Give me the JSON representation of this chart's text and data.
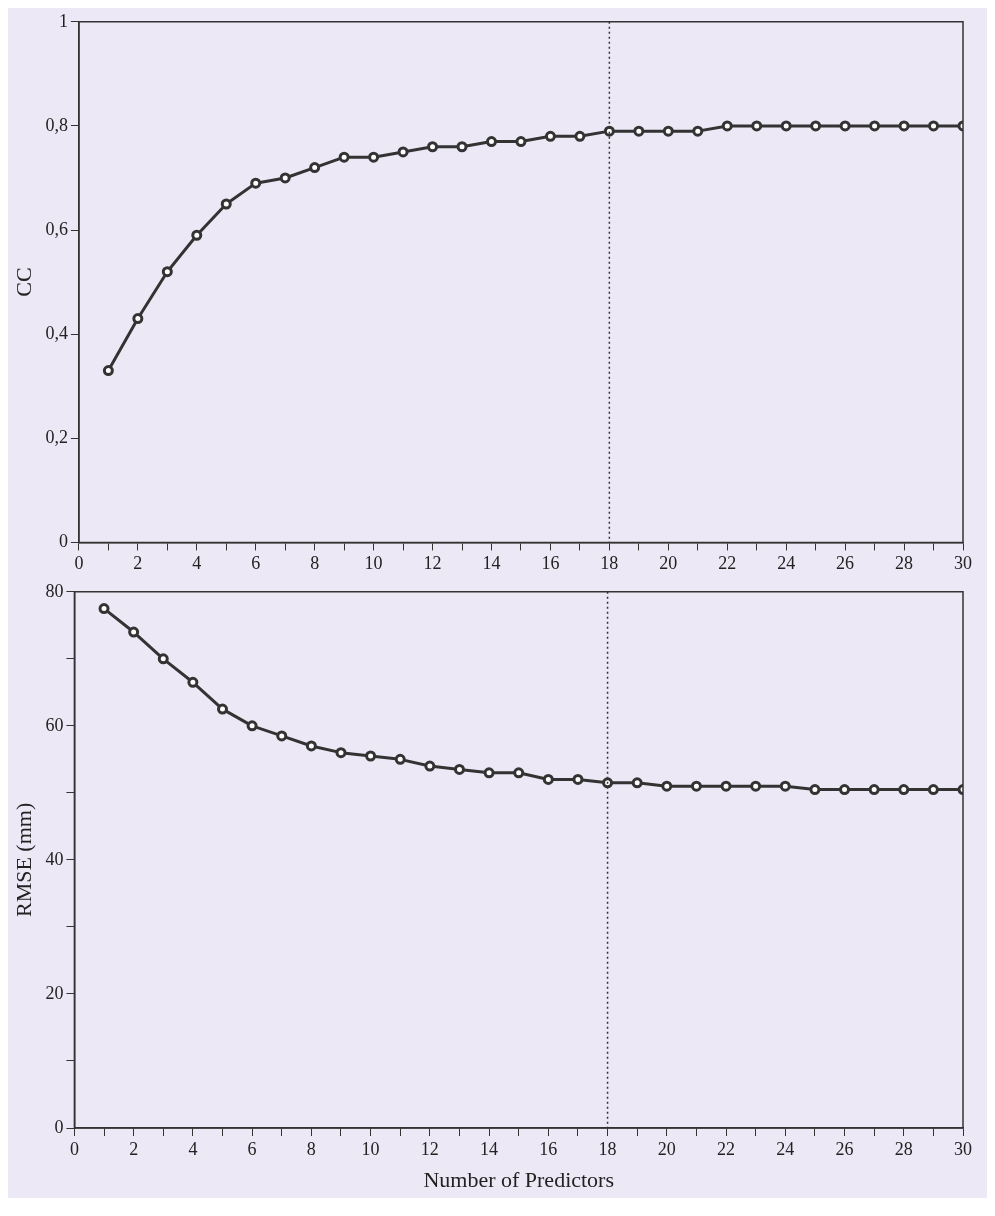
{
  "chart_data": [
    {
      "type": "line",
      "ylabel": "CC",
      "x": [
        1,
        2,
        3,
        4,
        5,
        6,
        7,
        8,
        9,
        10,
        11,
        12,
        13,
        14,
        15,
        16,
        17,
        18,
        19,
        20,
        21,
        22,
        23,
        24,
        25,
        26,
        27,
        28,
        29,
        30
      ],
      "series": [
        {
          "color": "#333333",
          "values": [
            0.33,
            0.43,
            0.52,
            0.59,
            0.65,
            0.69,
            0.7,
            0.72,
            0.74,
            0.74,
            0.75,
            0.76,
            0.76,
            0.77,
            0.77,
            0.78,
            0.78,
            0.79,
            0.79,
            0.79,
            0.79,
            0.8,
            0.8,
            0.8,
            0.8,
            0.8,
            0.8,
            0.8,
            0.8,
            0.8
          ]
        }
      ],
      "xlim": [
        0,
        30
      ],
      "xticks": [
        0,
        {
          "value": 1,
          "label": null
        },
        2,
        {
          "value": 3,
          "label": null
        },
        4,
        {
          "value": 5,
          "label": null
        },
        6,
        {
          "value": 7,
          "label": null
        },
        8,
        {
          "value": 9,
          "label": null
        },
        10,
        {
          "value": 11,
          "label": null
        },
        12,
        {
          "value": 13,
          "label": null
        },
        14,
        {
          "value": 15,
          "label": null
        },
        16,
        {
          "value": 17,
          "label": null
        },
        18,
        {
          "value": 19,
          "label": null
        },
        20,
        {
          "value": 21,
          "label": null
        },
        22,
        {
          "value": 23,
          "label": null
        },
        24,
        {
          "value": 25,
          "label": null
        },
        26,
        {
          "value": 27,
          "label": null
        },
        28,
        {
          "value": 29,
          "label": null
        },
        30
      ],
      "ylim": [
        0,
        1
      ],
      "yticks": [
        0,
        {
          "value": 0.2,
          "label": "0,2"
        },
        {
          "value": 0.4,
          "label": "0,4"
        },
        {
          "value": 0.6,
          "label": "0,6"
        },
        {
          "value": 0.8,
          "label": "0,8"
        },
        1
      ],
      "ref_lines": [
        {
          "axis": "x",
          "value": 18,
          "line_style": "dotted"
        }
      ],
      "grid": false,
      "legend": false,
      "marker": "circle",
      "line_style": "solid"
    },
    {
      "type": "line",
      "ylabel": "RMSE (mm)",
      "xlabel": "Number of Predictors",
      "x": [
        1,
        2,
        3,
        4,
        5,
        6,
        7,
        8,
        9,
        10,
        11,
        12,
        13,
        14,
        15,
        16,
        17,
        18,
        19,
        20,
        21,
        22,
        23,
        24,
        25,
        26,
        27,
        28,
        29,
        30
      ],
      "series": [
        {
          "color": "#333333",
          "values": [
            77.5,
            74,
            70,
            66.5,
            62.5,
            60,
            58.5,
            57,
            56,
            55.5,
            55,
            54,
            53.5,
            53,
            53,
            52,
            52,
            51.5,
            51.5,
            51,
            51,
            51,
            51,
            51,
            50.5,
            50.5,
            50.5,
            50.5,
            50.5,
            50.5
          ]
        }
      ],
      "xlim": [
        0,
        30
      ],
      "xticks": [
        0,
        {
          "value": 1,
          "label": null
        },
        2,
        {
          "value": 3,
          "label": null
        },
        4,
        {
          "value": 5,
          "label": null
        },
        6,
        {
          "value": 7,
          "label": null
        },
        8,
        {
          "value": 9,
          "label": null
        },
        10,
        {
          "value": 11,
          "label": null
        },
        12,
        {
          "value": 13,
          "label": null
        },
        14,
        {
          "value": 15,
          "label": null
        },
        16,
        {
          "value": 17,
          "label": null
        },
        18,
        {
          "value": 19,
          "label": null
        },
        20,
        {
          "value": 21,
          "label": null
        },
        22,
        {
          "value": 23,
          "label": null
        },
        24,
        {
          "value": 25,
          "label": null
        },
        26,
        {
          "value": 27,
          "label": null
        },
        28,
        {
          "value": 29,
          "label": null
        },
        30
      ],
      "ylim": [
        0,
        80
      ],
      "yticks": [
        0,
        {
          "value": 10,
          "label": null
        },
        20,
        {
          "value": 30,
          "label": null
        },
        40,
        {
          "value": 50,
          "label": null
        },
        60,
        {
          "value": 70,
          "label": null
        },
        80
      ],
      "ref_lines": [
        {
          "axis": "x",
          "value": 18,
          "line_style": "dotted"
        }
      ],
      "grid": false,
      "legend": false,
      "marker": "circle",
      "line_style": "solid"
    }
  ]
}
